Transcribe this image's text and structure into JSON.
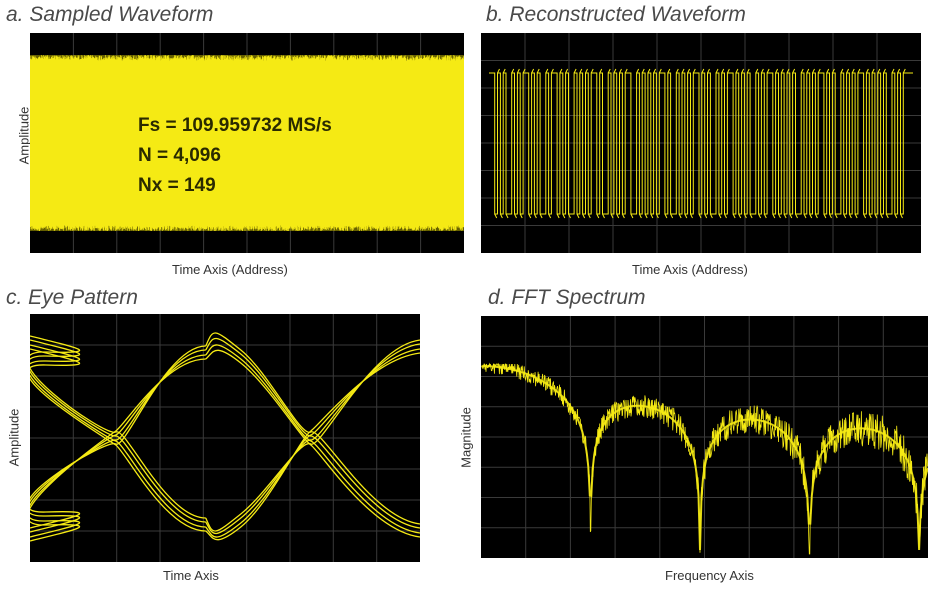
{
  "chart_data": [
    {
      "panel": "a",
      "type": "line",
      "title": "a. Sampled Waveform",
      "xlabel": "Time Axis (Address)",
      "ylabel": "Amplitude",
      "annotations": [
        "Fs = 109.959732 MS/s",
        "N = 4,096",
        "Nx = 149"
      ],
      "params": {
        "Fs_MSps": 109.959732,
        "N": 4096,
        "Nx": 149
      },
      "levels": {
        "high": 1,
        "low": -1
      },
      "grid": true,
      "color": "#f5ea14"
    },
    {
      "panel": "b",
      "type": "line",
      "title": "b. Reconstructed Waveform",
      "xlabel": "Time Axis (Address)",
      "ylabel": "",
      "bits": [
        1,
        1,
        0,
        1,
        0,
        1,
        0,
        0,
        1,
        0,
        1,
        0,
        1,
        1,
        0,
        1,
        0,
        1,
        0,
        0,
        1,
        0,
        1,
        1,
        0,
        1,
        0,
        1,
        0,
        0,
        1,
        0,
        1,
        0,
        1,
        0,
        1,
        1,
        0,
        1,
        0,
        0,
        1,
        0,
        1,
        0,
        1,
        0,
        1,
        1,
        0,
        0,
        1,
        0,
        1,
        0,
        1,
        0,
        1,
        0,
        1,
        1,
        0,
        1,
        0,
        0,
        1,
        0,
        1,
        0,
        1,
        0,
        1,
        1,
        0,
        1,
        0,
        1,
        0,
        0,
        1,
        0,
        1,
        0,
        1,
        1,
        0,
        1,
        0,
        1,
        0,
        1,
        0,
        0,
        1,
        0,
        1,
        0,
        1,
        1,
        0,
        1,
        0,
        1,
        0,
        1,
        0,
        1,
        0,
        0,
        1,
        0,
        1,
        0,
        1,
        0,
        1,
        1,
        0,
        1,
        0,
        1,
        0,
        0,
        1,
        0,
        1,
        0,
        1,
        0,
        1,
        1,
        0,
        1,
        0,
        1,
        0,
        1,
        0,
        1,
        0,
        0,
        1,
        0,
        1,
        0,
        1,
        1
      ],
      "levels": {
        "high": 1,
        "low": -1
      },
      "grid": true,
      "color": "#f5ea14"
    },
    {
      "panel": "c",
      "type": "line",
      "title": "c. Eye Pattern",
      "xlabel": "Time Axis",
      "ylabel": "Amplitude",
      "unit_interval_crossings": [
        0.22,
        0.72
      ],
      "levels": {
        "high": 1,
        "low": -1
      },
      "grid": true,
      "color": "#f5ea14"
    },
    {
      "panel": "d",
      "type": "line",
      "title": "d. FFT Spectrum",
      "xlabel": "Frequency Axis",
      "ylabel": "Magnitude",
      "shape": "sinc",
      "nulls_fraction_of_axis": [
        0.245,
        0.49
      ],
      "grid": true,
      "color": "#f5ea14"
    }
  ]
}
